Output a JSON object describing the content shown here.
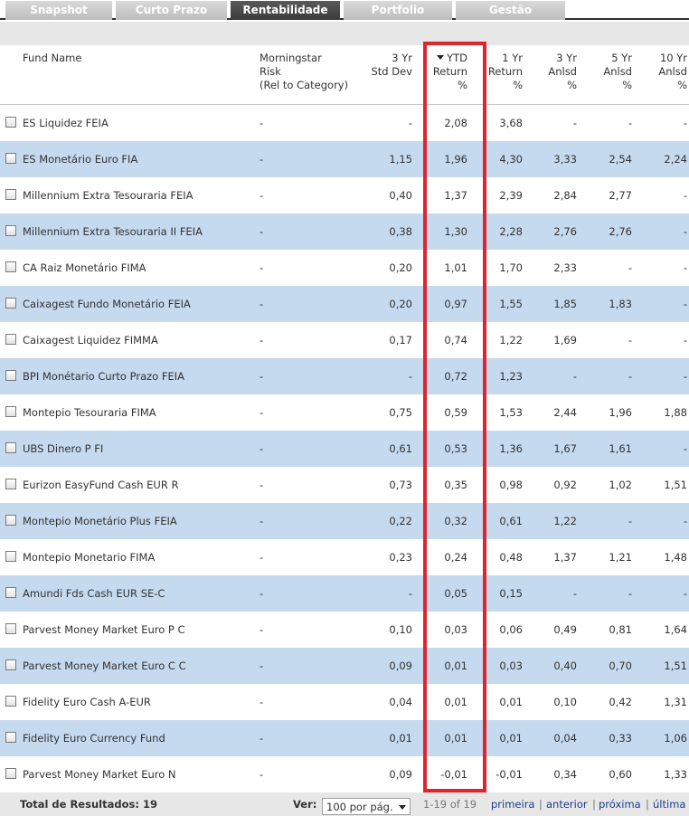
{
  "tabs": [
    {
      "label": "Snapshot",
      "active": false
    },
    {
      "label": "Curto Prazo",
      "active": false
    },
    {
      "label": "Rentabilidade",
      "active": true
    },
    {
      "label": "Portfolio",
      "active": false
    },
    {
      "label": "Gestão",
      "active": false
    }
  ],
  "columns": {
    "fund_name": "Fund Name",
    "risk": [
      "Morningstar",
      "Risk",
      "(Rel to Category)"
    ],
    "std_dev": [
      "3 Yr",
      "Std Dev"
    ],
    "ytd": [
      "YTD",
      "Return",
      "%"
    ],
    "ret_1yr": [
      "1 Yr",
      "Return",
      "%"
    ],
    "ret_3yr": [
      "3 Yr",
      "Anlsd",
      "%"
    ],
    "ret_5yr": [
      "5 Yr",
      "Anlsd",
      "%"
    ],
    "ret_10yr": [
      "10 Yr",
      "Anlsd",
      "%"
    ]
  },
  "sort": {
    "column": "ytd",
    "direction": "descending"
  },
  "rows": [
    {
      "name": "ES Liquidez FEIA",
      "risk": "-",
      "std": "-",
      "ytd": "2,08",
      "y1": "3,68",
      "y3": "-",
      "y5": "-",
      "y10": "-"
    },
    {
      "name": "ES Monetário Euro FIA",
      "risk": "-",
      "std": "1,15",
      "ytd": "1,96",
      "y1": "4,30",
      "y3": "3,33",
      "y5": "2,54",
      "y10": "2,24"
    },
    {
      "name": "Millennium Extra Tesouraria FEIA",
      "risk": "-",
      "std": "0,40",
      "ytd": "1,37",
      "y1": "2,39",
      "y3": "2,84",
      "y5": "2,77",
      "y10": "-"
    },
    {
      "name": "Millennium Extra Tesouraria II FEIA",
      "risk": "-",
      "std": "0,38",
      "ytd": "1,30",
      "y1": "2,28",
      "y3": "2,76",
      "y5": "2,76",
      "y10": "-"
    },
    {
      "name": "CA Raiz Monetário FIMA",
      "risk": "-",
      "std": "0,20",
      "ytd": "1,01",
      "y1": "1,70",
      "y3": "2,33",
      "y5": "-",
      "y10": "-"
    },
    {
      "name": "Caixagest Fundo Monetário FEIA",
      "risk": "-",
      "std": "0,20",
      "ytd": "0,97",
      "y1": "1,55",
      "y3": "1,85",
      "y5": "1,83",
      "y10": "-"
    },
    {
      "name": "Caixagest Liquidez FIMMA",
      "risk": "-",
      "std": "0,17",
      "ytd": "0,74",
      "y1": "1,22",
      "y3": "1,69",
      "y5": "-",
      "y10": "-"
    },
    {
      "name": "BPI Monétario Curto Prazo FEIA",
      "risk": "-",
      "std": "-",
      "ytd": "0,72",
      "y1": "1,23",
      "y3": "-",
      "y5": "-",
      "y10": "-"
    },
    {
      "name": "Montepio Tesouraria FIMA",
      "risk": "-",
      "std": "0,75",
      "ytd": "0,59",
      "y1": "1,53",
      "y3": "2,44",
      "y5": "1,96",
      "y10": "1,88"
    },
    {
      "name": "UBS Dinero P FI",
      "risk": "-",
      "std": "0,61",
      "ytd": "0,53",
      "y1": "1,36",
      "y3": "1,67",
      "y5": "1,61",
      "y10": "-"
    },
    {
      "name": "Eurizon EasyFund Cash EUR R",
      "risk": "-",
      "std": "0,73",
      "ytd": "0,35",
      "y1": "0,98",
      "y3": "0,92",
      "y5": "1,02",
      "y10": "1,51"
    },
    {
      "name": "Montepio Monetário Plus FEIA",
      "risk": "-",
      "std": "0,22",
      "ytd": "0,32",
      "y1": "0,61",
      "y3": "1,22",
      "y5": "-",
      "y10": "-"
    },
    {
      "name": "Montepio Monetario FIMA",
      "risk": "-",
      "std": "0,23",
      "ytd": "0,24",
      "y1": "0,48",
      "y3": "1,37",
      "y5": "1,21",
      "y10": "1,48"
    },
    {
      "name": "Amundi Fds Cash EUR SE-C",
      "risk": "-",
      "std": "-",
      "ytd": "0,05",
      "y1": "0,15",
      "y3": "-",
      "y5": "-",
      "y10": "-"
    },
    {
      "name": "Parvest Money Market Euro P C",
      "risk": "-",
      "std": "0,10",
      "ytd": "0,03",
      "y1": "0,06",
      "y3": "0,49",
      "y5": "0,81",
      "y10": "1,64"
    },
    {
      "name": "Parvest Money Market Euro C C",
      "risk": "-",
      "std": "0,09",
      "ytd": "0,01",
      "y1": "0,03",
      "y3": "0,40",
      "y5": "0,70",
      "y10": "1,51"
    },
    {
      "name": "Fidelity Euro Cash A-EUR",
      "risk": "-",
      "std": "0,04",
      "ytd": "0,01",
      "y1": "0,01",
      "y3": "0,10",
      "y5": "0,42",
      "y10": "1,31"
    },
    {
      "name": "Fidelity Euro Currency Fund",
      "risk": "-",
      "std": "0,01",
      "ytd": "0,01",
      "y1": "0,01",
      "y3": "0,04",
      "y5": "0,33",
      "y10": "1,06"
    },
    {
      "name": "Parvest Money Market Euro N",
      "risk": "-",
      "std": "0,09",
      "ytd": "-0,01",
      "y1": "-0,01",
      "y3": "0,34",
      "y5": "0,60",
      "y10": "1,33"
    }
  ],
  "footer": {
    "total_label": "Total de Resultados:",
    "total_value": "19",
    "ver_label": "Ver:",
    "per_page": "100 por pág.",
    "range": "1-19 of 19",
    "first": "primeira",
    "prev": "anterior",
    "next": "próxima",
    "last": "última",
    "separator": "|"
  },
  "colors": {
    "highlight": "#e0242c",
    "alt_row": "#c5d9ef",
    "active_tab": "#444444"
  }
}
